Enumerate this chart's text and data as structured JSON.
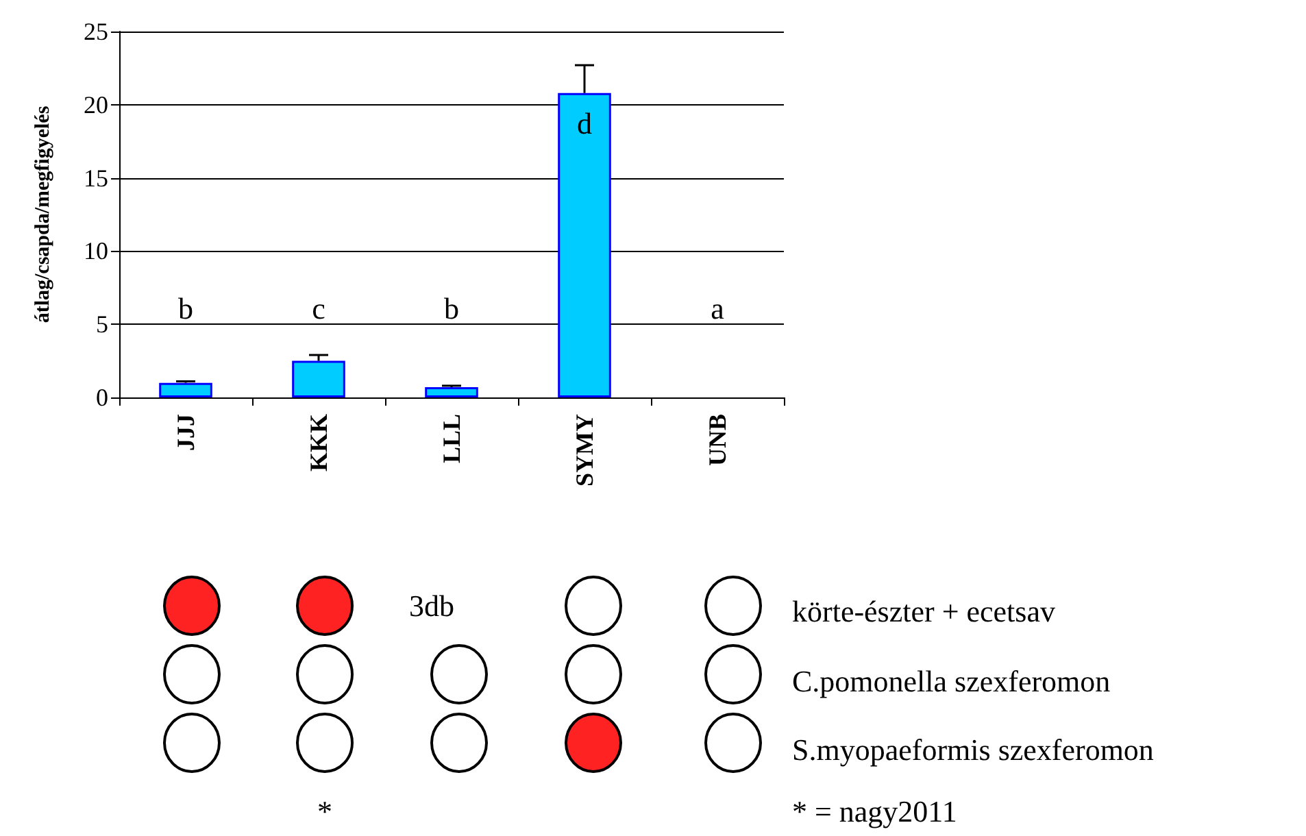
{
  "chart_data": {
    "type": "bar",
    "ylabel": "átlag/csapda/megfigyelés",
    "categories": [
      "JJJ",
      "KKK",
      "LLL",
      "SYMY",
      "UNB"
    ],
    "values": [
      1,
      2.5,
      0.7,
      20.8,
      0
    ],
    "errors": [
      [
        1,
        1.1
      ],
      [
        2.5,
        2.9
      ],
      [
        0.7,
        0.8
      ],
      [
        20.8,
        22.7
      ],
      null
    ],
    "color": "#00ccff",
    "ylim": [
      0,
      25
    ],
    "yticks": [
      0,
      5,
      10,
      15,
      20,
      25
    ],
    "grid": "y",
    "annotations": [
      "b",
      "c",
      "b",
      "d",
      "a",
      "3db",
      "körte-észter + ecetsav",
      "C.pomonella szexferomon",
      "S.myopaeformis szexferomon",
      "*",
      "* = nagy2011"
    ]
  }
}
